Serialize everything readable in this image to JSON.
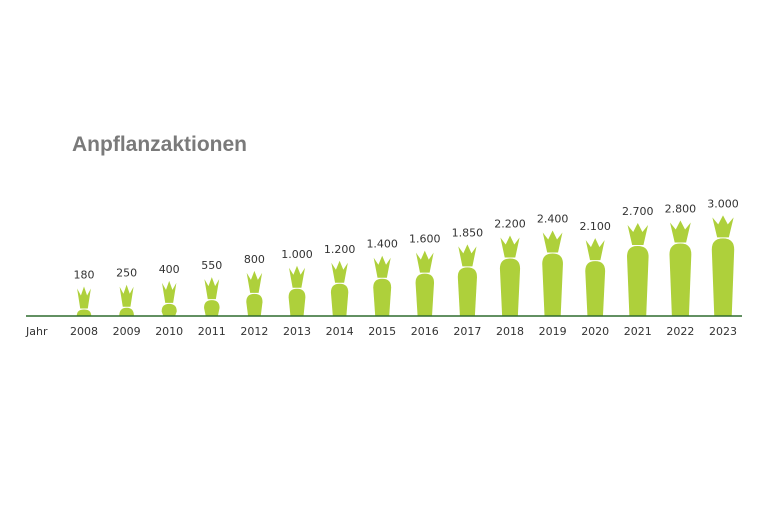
{
  "chart_data": {
    "type": "bar",
    "title": "Anpflanzaktionen",
    "xlabel": "Jahr",
    "ylabel": "",
    "categories": [
      "2008",
      "2009",
      "2010",
      "2011",
      "2012",
      "2013",
      "2014",
      "2015",
      "2016",
      "2017",
      "2018",
      "2019",
      "2020",
      "2021",
      "2022",
      "2023"
    ],
    "values": [
      180,
      250,
      400,
      550,
      800,
      1000,
      1200,
      1400,
      1600,
      1850,
      2200,
      2400,
      2100,
      2700,
      2800,
      3000
    ],
    "value_labels": [
      "180",
      "250",
      "400",
      "550",
      "800",
      "1.000",
      "1.200",
      "1.400",
      "1.600",
      "1.850",
      "2.200",
      "2.400",
      "2.100",
      "2.700",
      "2.800",
      "3.000"
    ],
    "ylim": [
      0,
      3000
    ],
    "grid": false,
    "colors": {
      "carrot": "#aed03b",
      "baseline": "#2e6b2f",
      "title": "#7a7a7a",
      "text": "#333333"
    }
  }
}
